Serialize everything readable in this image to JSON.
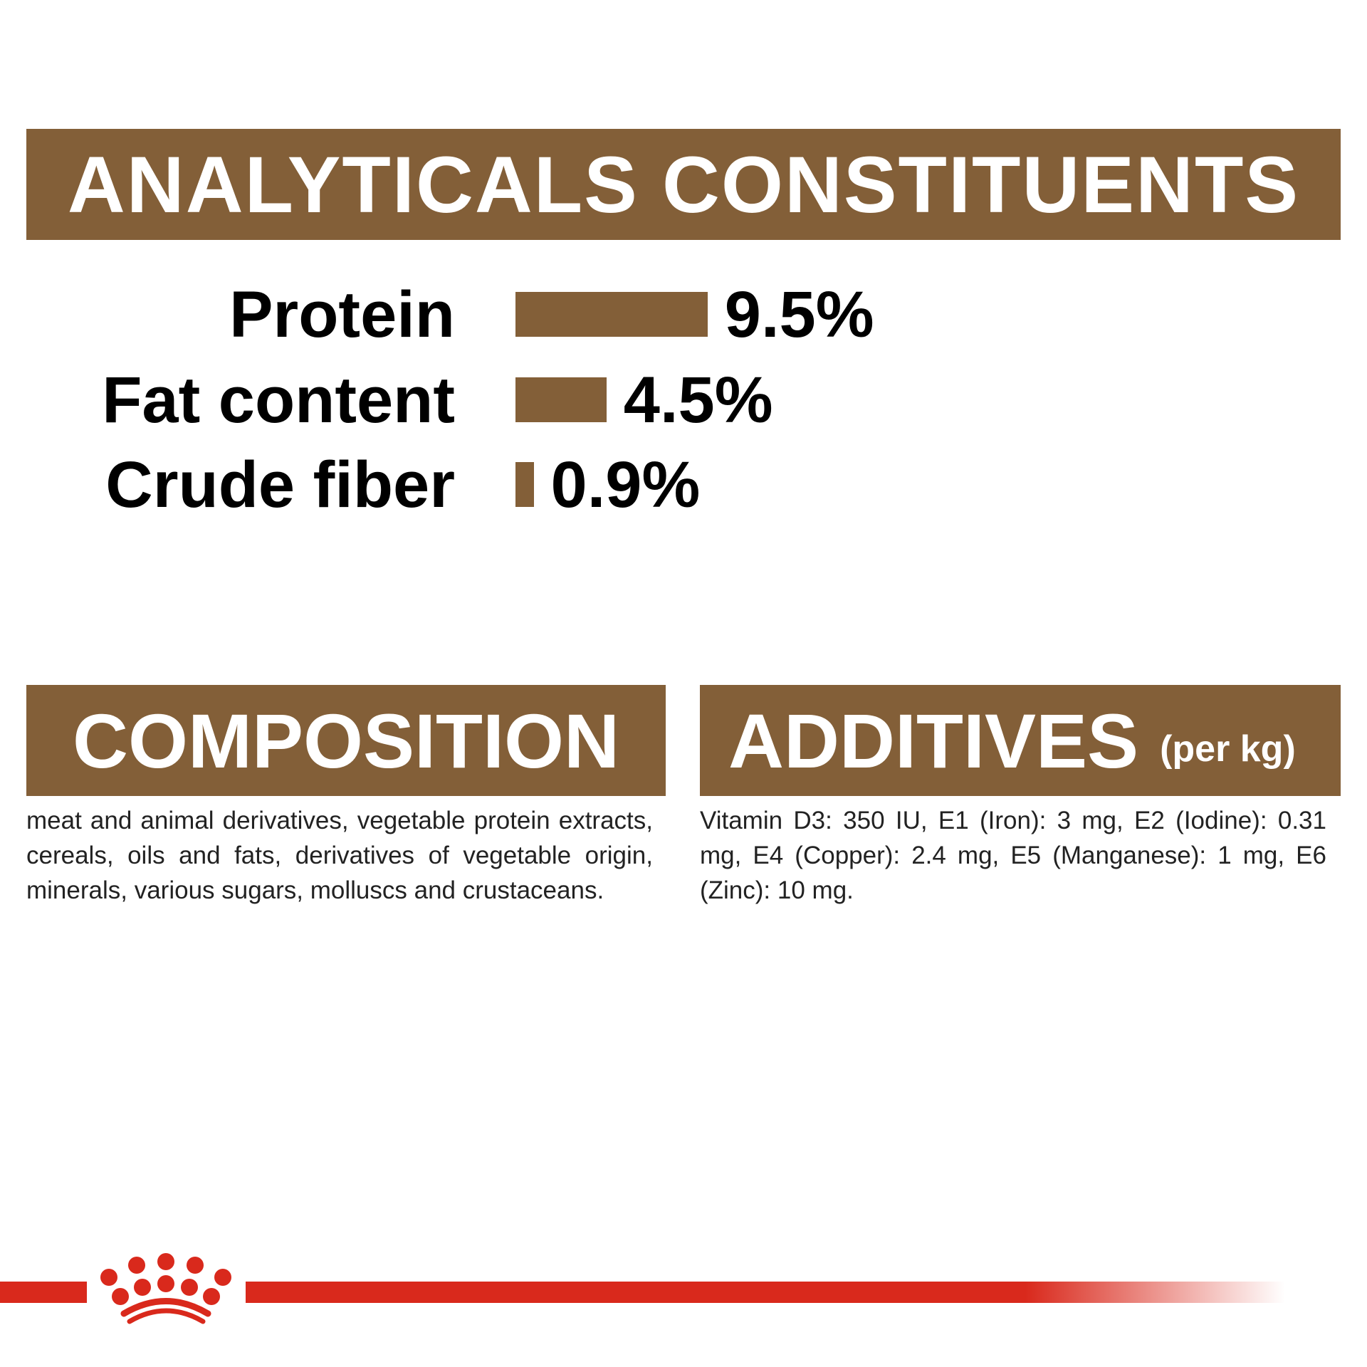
{
  "analytical": {
    "title": "ANALYTICALS CONSTITUENTS",
    "items": [
      {
        "label": "Protein",
        "value": "9.5%",
        "percent": 9.5
      },
      {
        "label": "Fat content",
        "value": "4.5%",
        "percent": 4.5
      },
      {
        "label": "Crude fiber",
        "value": "0.9%",
        "percent": 0.9
      }
    ]
  },
  "composition": {
    "title": "COMPOSITION",
    "text": "meat and animal derivatives, vegetable protein extracts, cereals, oils and fats, derivatives of vegetable origin, minerals, various sugars, molluscs and crustaceans."
  },
  "additives": {
    "title": "ADDITIVES",
    "unit": "(per kg)",
    "text": "Vitamin D3: 350 IU, E1 (Iron): 3 mg, E2 (Iodine): 0.31 mg, E4 (Copper): 2.4 mg, E5 (Manganese): 1 mg, E6 (Zinc): 10 mg."
  },
  "colors": {
    "brand_brown": "#835f38",
    "brand_red": "#d9291c"
  },
  "logo": {
    "icon": "royal-canin-crown-icon"
  }
}
